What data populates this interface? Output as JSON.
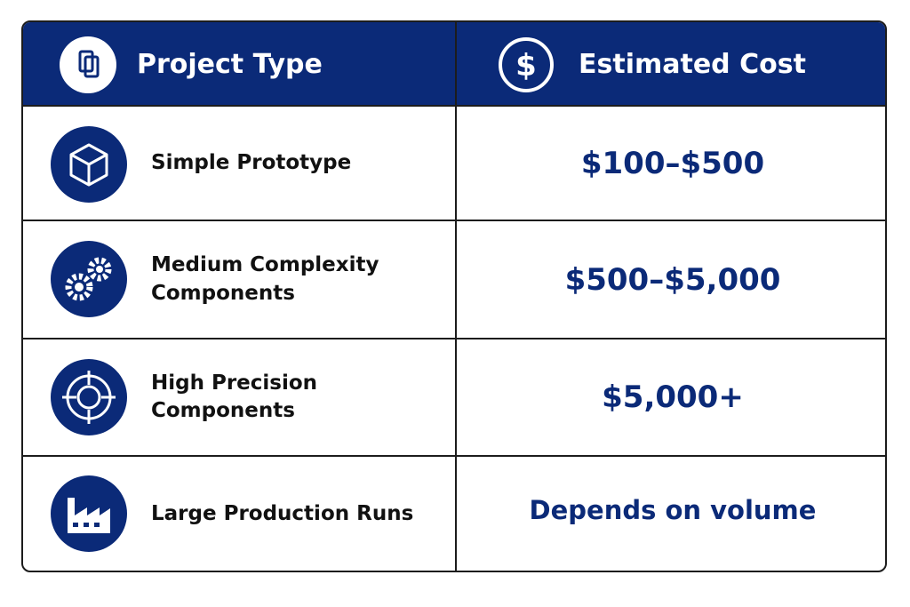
{
  "table": {
    "header": [
      "Project Type",
      "Estimated Cost"
    ],
    "rows": [
      [
        "Simple Prototype",
        "$100–$500"
      ],
      [
        "Medium Complexity Components",
        "$500–$5,000"
      ],
      [
        "High Precision Components",
        "$5,000+"
      ],
      [
        "Large Production Runs",
        "Depends on volume"
      ]
    ]
  }
}
